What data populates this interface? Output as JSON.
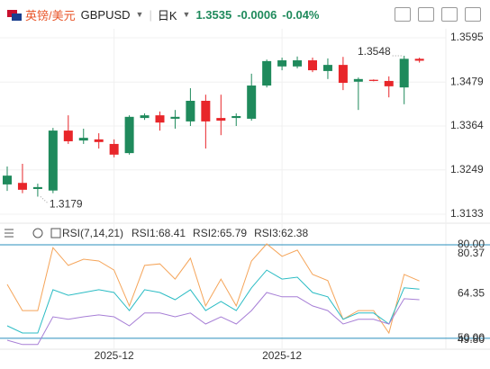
{
  "header": {
    "pair_cn": "英镑/美元",
    "symbol": "GBPUSD",
    "period": "日K",
    "price": "1.3535",
    "change": "-0.0006",
    "change_pct": "-0.04%"
  },
  "chart_data": [
    {
      "type": "candlestick",
      "categories": [
        null,
        null,
        null,
        null,
        null,
        null,
        null,
        "2025-12",
        null,
        null,
        null,
        null,
        null,
        null,
        null,
        null,
        null,
        null,
        "2025-12",
        null,
        null,
        null,
        null,
        null,
        null,
        null,
        null,
        null
      ],
      "open": [
        1.3211,
        1.3215,
        1.3199,
        1.3195,
        1.3352,
        1.3326,
        1.3329,
        1.3317,
        1.3293,
        1.3385,
        1.3392,
        1.3383,
        1.3376,
        1.343,
        1.3385,
        1.3385,
        1.3383,
        1.347,
        1.352,
        1.352,
        1.3536,
        1.3508,
        1.3524,
        1.348,
        1.3485,
        1.3482,
        1.3465,
        1.354
      ],
      "high": [
        1.3258,
        1.3265,
        1.3213,
        1.3359,
        1.3392,
        1.3357,
        1.3345,
        1.3329,
        1.3392,
        1.3397,
        1.3402,
        1.3406,
        1.3463,
        1.3446,
        1.3446,
        1.3397,
        1.3501,
        1.3538,
        1.3543,
        1.3546,
        1.3543,
        1.3541,
        1.3545,
        1.3491,
        1.3486,
        1.3494,
        1.3548,
        1.3543
      ],
      "low": [
        1.3194,
        1.3188,
        1.3179,
        1.3188,
        1.3317,
        1.3317,
        1.3305,
        1.3282,
        1.3289,
        1.338,
        1.3352,
        1.3357,
        1.3364,
        1.3305,
        1.334,
        1.3364,
        1.3378,
        1.3465,
        1.351,
        1.3515,
        1.3505,
        1.3487,
        1.3458,
        1.3406,
        1.3481,
        1.3439,
        1.3421,
        1.353
      ],
      "close": [
        1.3234,
        1.3197,
        1.3204,
        1.3352,
        1.3324,
        1.3333,
        1.3322,
        1.3289,
        1.3388,
        1.3392,
        1.3373,
        1.3388,
        1.343,
        1.3376,
        1.3378,
        1.339,
        1.347,
        1.3534,
        1.3536,
        1.3536,
        1.351,
        1.3524,
        1.3477,
        1.3487,
        1.3482,
        1.3468,
        1.354,
        1.3535
      ],
      "up_color": "#1f8a5c",
      "down_color": "#e8262a",
      "ylim": [
        1.3133,
        1.3595
      ],
      "yticks": [
        1.3595,
        1.3479,
        1.3364,
        1.3249,
        1.3133
      ],
      "high_label": 1.3548,
      "low_label": 1.3179
    },
    {
      "type": "line",
      "title": "RSI(7,14,21)",
      "series": [
        {
          "name": "RSI1:68.41",
          "color": "#f5a55a",
          "values": [
            67.3,
            58.9,
            58.9,
            79.1,
            73.4,
            75.4,
            74.8,
            71.9,
            60.4,
            73.4,
            73.9,
            69.0,
            75.7,
            60.4,
            69.0,
            60.4,
            74.8,
            80.3,
            76.3,
            78.3,
            70.5,
            68.5,
            56.1,
            58.9,
            58.9,
            51.7,
            70.5,
            68.41
          ]
        },
        {
          "name": "RSI2:65.79",
          "color": "#2bbcc4",
          "values": [
            54.0,
            51.7,
            51.7,
            65.6,
            63.8,
            64.7,
            65.6,
            64.7,
            58.9,
            65.6,
            64.7,
            62.4,
            65.6,
            58.9,
            61.8,
            58.9,
            66.2,
            71.9,
            69.0,
            69.6,
            64.7,
            63.3,
            56.1,
            58.1,
            58.1,
            54.6,
            66.2,
            65.79
          ]
        },
        {
          "name": "RSI3:62.38",
          "color": "#a77fd6",
          "values": [
            49.4,
            48.0,
            48.0,
            56.9,
            56.1,
            56.9,
            57.5,
            56.9,
            54.0,
            58.1,
            58.1,
            56.9,
            58.1,
            54.6,
            56.9,
            54.6,
            58.9,
            64.7,
            63.3,
            63.3,
            60.4,
            58.9,
            54.6,
            56.1,
            56.1,
            54.6,
            62.7,
            62.38
          ]
        }
      ],
      "ylim": [
        46.5,
        82.9
      ],
      "yticks": [
        {
          "value": 80,
          "label": "80.00"
        },
        {
          "value": 50,
          "label": "50.00"
        }
      ],
      "level_color": "#2a8fbd",
      "side_labels": [
        80.37,
        64.35,
        {
          "value": 49.8,
          "label": "49.80"
        }
      ]
    }
  ]
}
